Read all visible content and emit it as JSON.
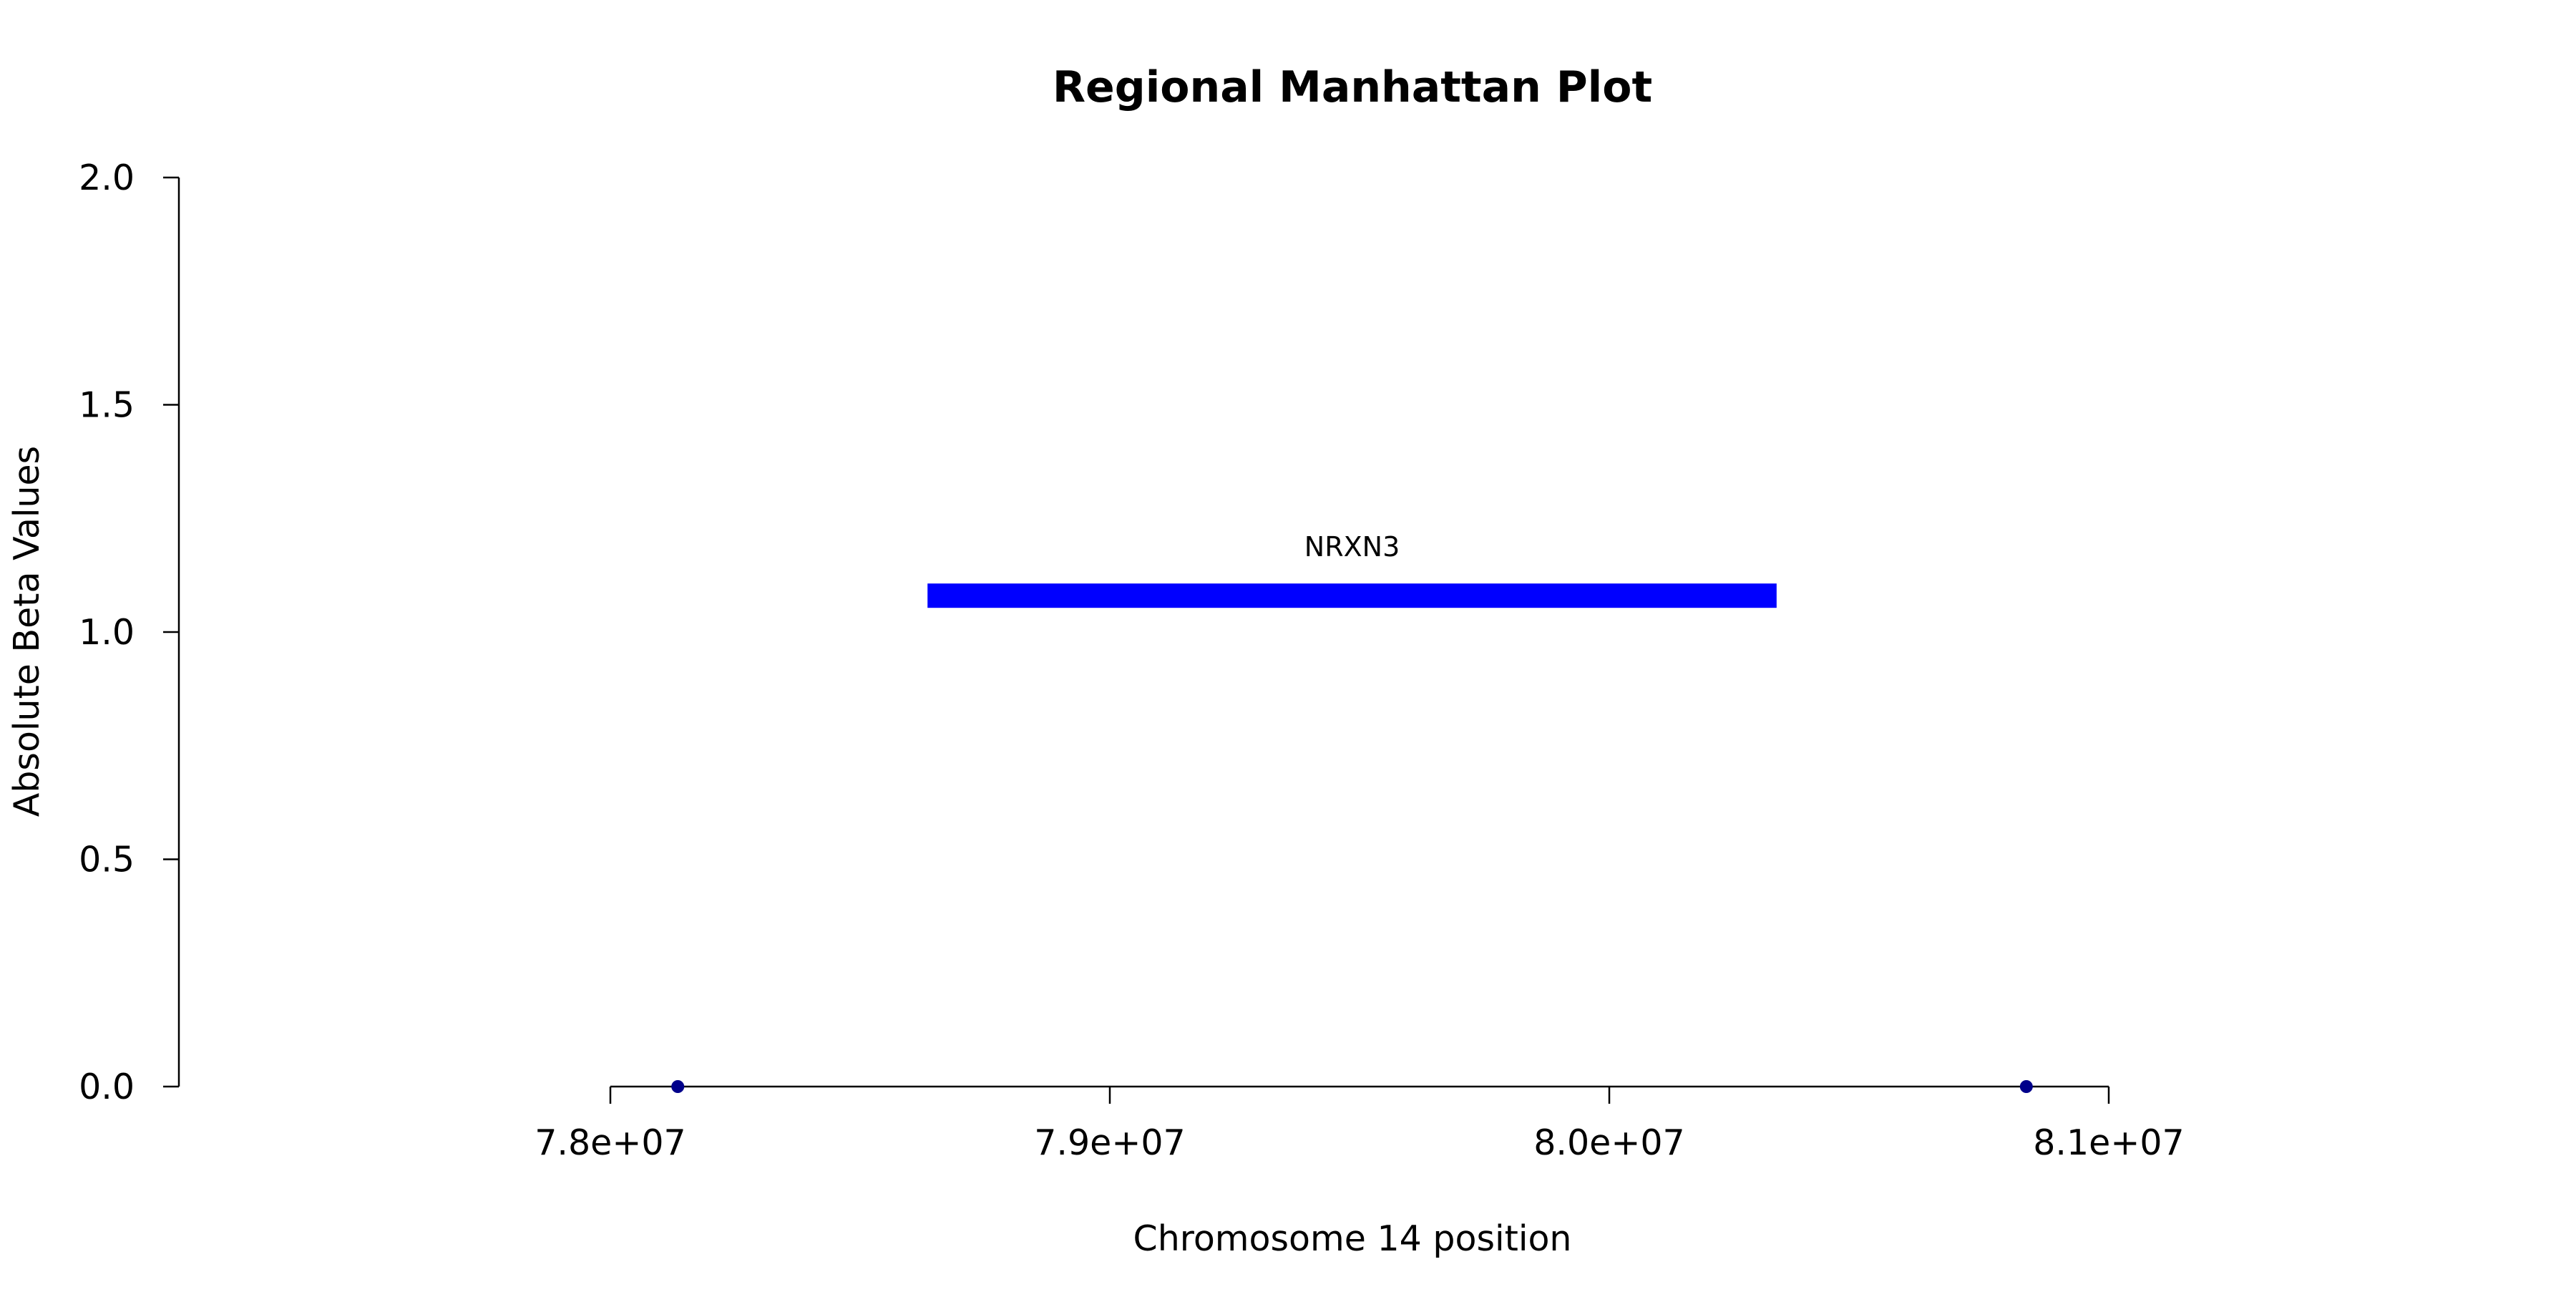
{
  "chart_data": {
    "type": "scatter",
    "title": "Regional Manhattan Plot",
    "xlabel": "Chromosome 14 position",
    "ylabel": "Absolute Beta Values",
    "xlim": [
      77800000,
      81200000
    ],
    "ylim": [
      0,
      2.0
    ],
    "x_ticks": [
      78000000,
      79000000,
      80000000,
      81000000
    ],
    "x_tick_labels": [
      "7.8e+07",
      "7.9e+07",
      "8.0e+07",
      "8.1e+07"
    ],
    "y_ticks": [
      0.0,
      0.5,
      1.0,
      1.5,
      2.0
    ],
    "y_tick_labels": [
      "0.0",
      "0.5",
      "1.0",
      "1.5",
      "2.0"
    ],
    "grid": false,
    "points": {
      "color": "#00008B",
      "x": [
        78135000,
        80835000
      ],
      "y": [
        0,
        0
      ]
    },
    "genes": [
      {
        "label": "NRXN3",
        "start": 78635000,
        "end": 80335000,
        "y": 1.08,
        "color": "#0000FF"
      }
    ]
  }
}
